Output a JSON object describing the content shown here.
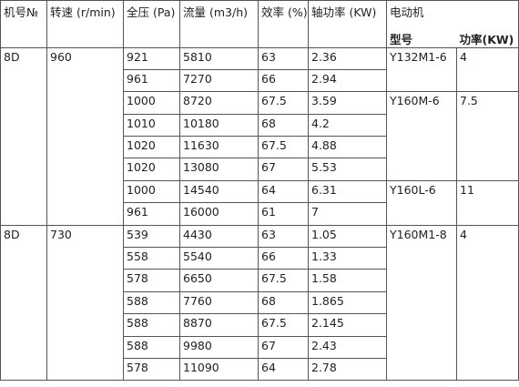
{
  "header": {
    "columns": [
      "机号№",
      "转速 (r/min)",
      "全压 (Pa)",
      "流量 (m3/h)",
      "效率 (%)",
      "轴功率 (KW)"
    ],
    "motor": "电动机",
    "motor_columns": [
      "型号",
      "功率(KW)"
    ]
  },
  "groups": [
    {
      "model": "8D",
      "speed": "960",
      "rows": [
        [
          "921",
          "5810",
          "63",
          "2.36",
          "Y132M1-6",
          "4"
        ],
        [
          "961",
          "7270",
          "66",
          "2.94"
        ],
        [
          "1000",
          "8720",
          "67.5",
          "3.59",
          "Y160M-6",
          "7.5"
        ],
        [
          "1010",
          "10180",
          "68",
          "4.2"
        ],
        [
          "1020",
          "11630",
          "67.5",
          "4.88"
        ],
        [
          "1020",
          "13080",
          "67",
          "5.53"
        ],
        [
          "1000",
          "14540",
          "64",
          "6.31",
          "Y160L-6",
          "11"
        ],
        [
          "961",
          "16000",
          "61",
          "7"
        ]
      ]
    },
    {
      "model": "8D",
      "speed": "730",
      "rows": [
        [
          "539",
          "4430",
          "63",
          "1.05",
          "Y160M1-8",
          "4"
        ],
        [
          "558",
          "5540",
          "66",
          "1.33"
        ],
        [
          "578",
          "6650",
          "67.5",
          "1.58"
        ],
        [
          "588",
          "7760",
          "68",
          "1.865"
        ],
        [
          "588",
          "8870",
          "67.5",
          "2.145"
        ],
        [
          "588",
          "9980",
          "67",
          "2.43"
        ],
        [
          "578",
          "11090",
          "64",
          "2.78"
        ]
      ]
    }
  ]
}
